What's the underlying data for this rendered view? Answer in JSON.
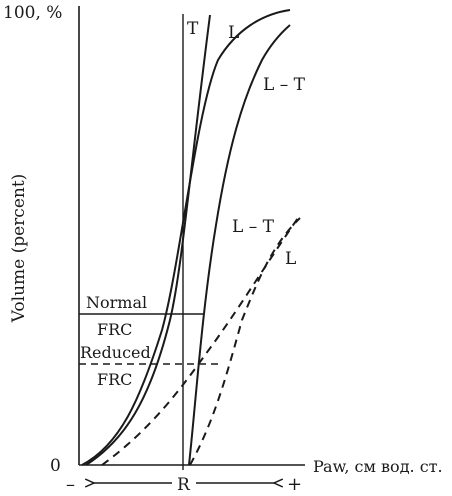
{
  "chart_data": {
    "type": "line",
    "title": "",
    "xlabel": "Paw, см вод. ст.",
    "ylabel": "Volume (percent)",
    "y_top_label": "100, %",
    "y_zero_label": "0",
    "x_markers": {
      "minus": "–",
      "plus": "+",
      "rest": "R"
    },
    "ylim": [
      0,
      100
    ],
    "levels": [
      {
        "name": "normal-frc",
        "label_top": "Normal",
        "label_bottom": "FRC",
        "volume": 34,
        "line_style": "solid"
      },
      {
        "name": "reduced-frc",
        "label_top": "Reduced",
        "label_bottom": "FRC",
        "volume": 22,
        "line_style": "dashed"
      }
    ],
    "series": [
      {
        "id": "t",
        "label": "T",
        "line_style": "solid"
      },
      {
        "id": "l",
        "label": "L",
        "line_style": "solid"
      },
      {
        "id": "lt",
        "label": "L – T",
        "line_style": "solid"
      },
      {
        "id": "lt-dashed",
        "label": "L – T",
        "line_style": "dashed"
      },
      {
        "id": "l-dashed",
        "label": "L",
        "line_style": "dashed"
      }
    ]
  }
}
